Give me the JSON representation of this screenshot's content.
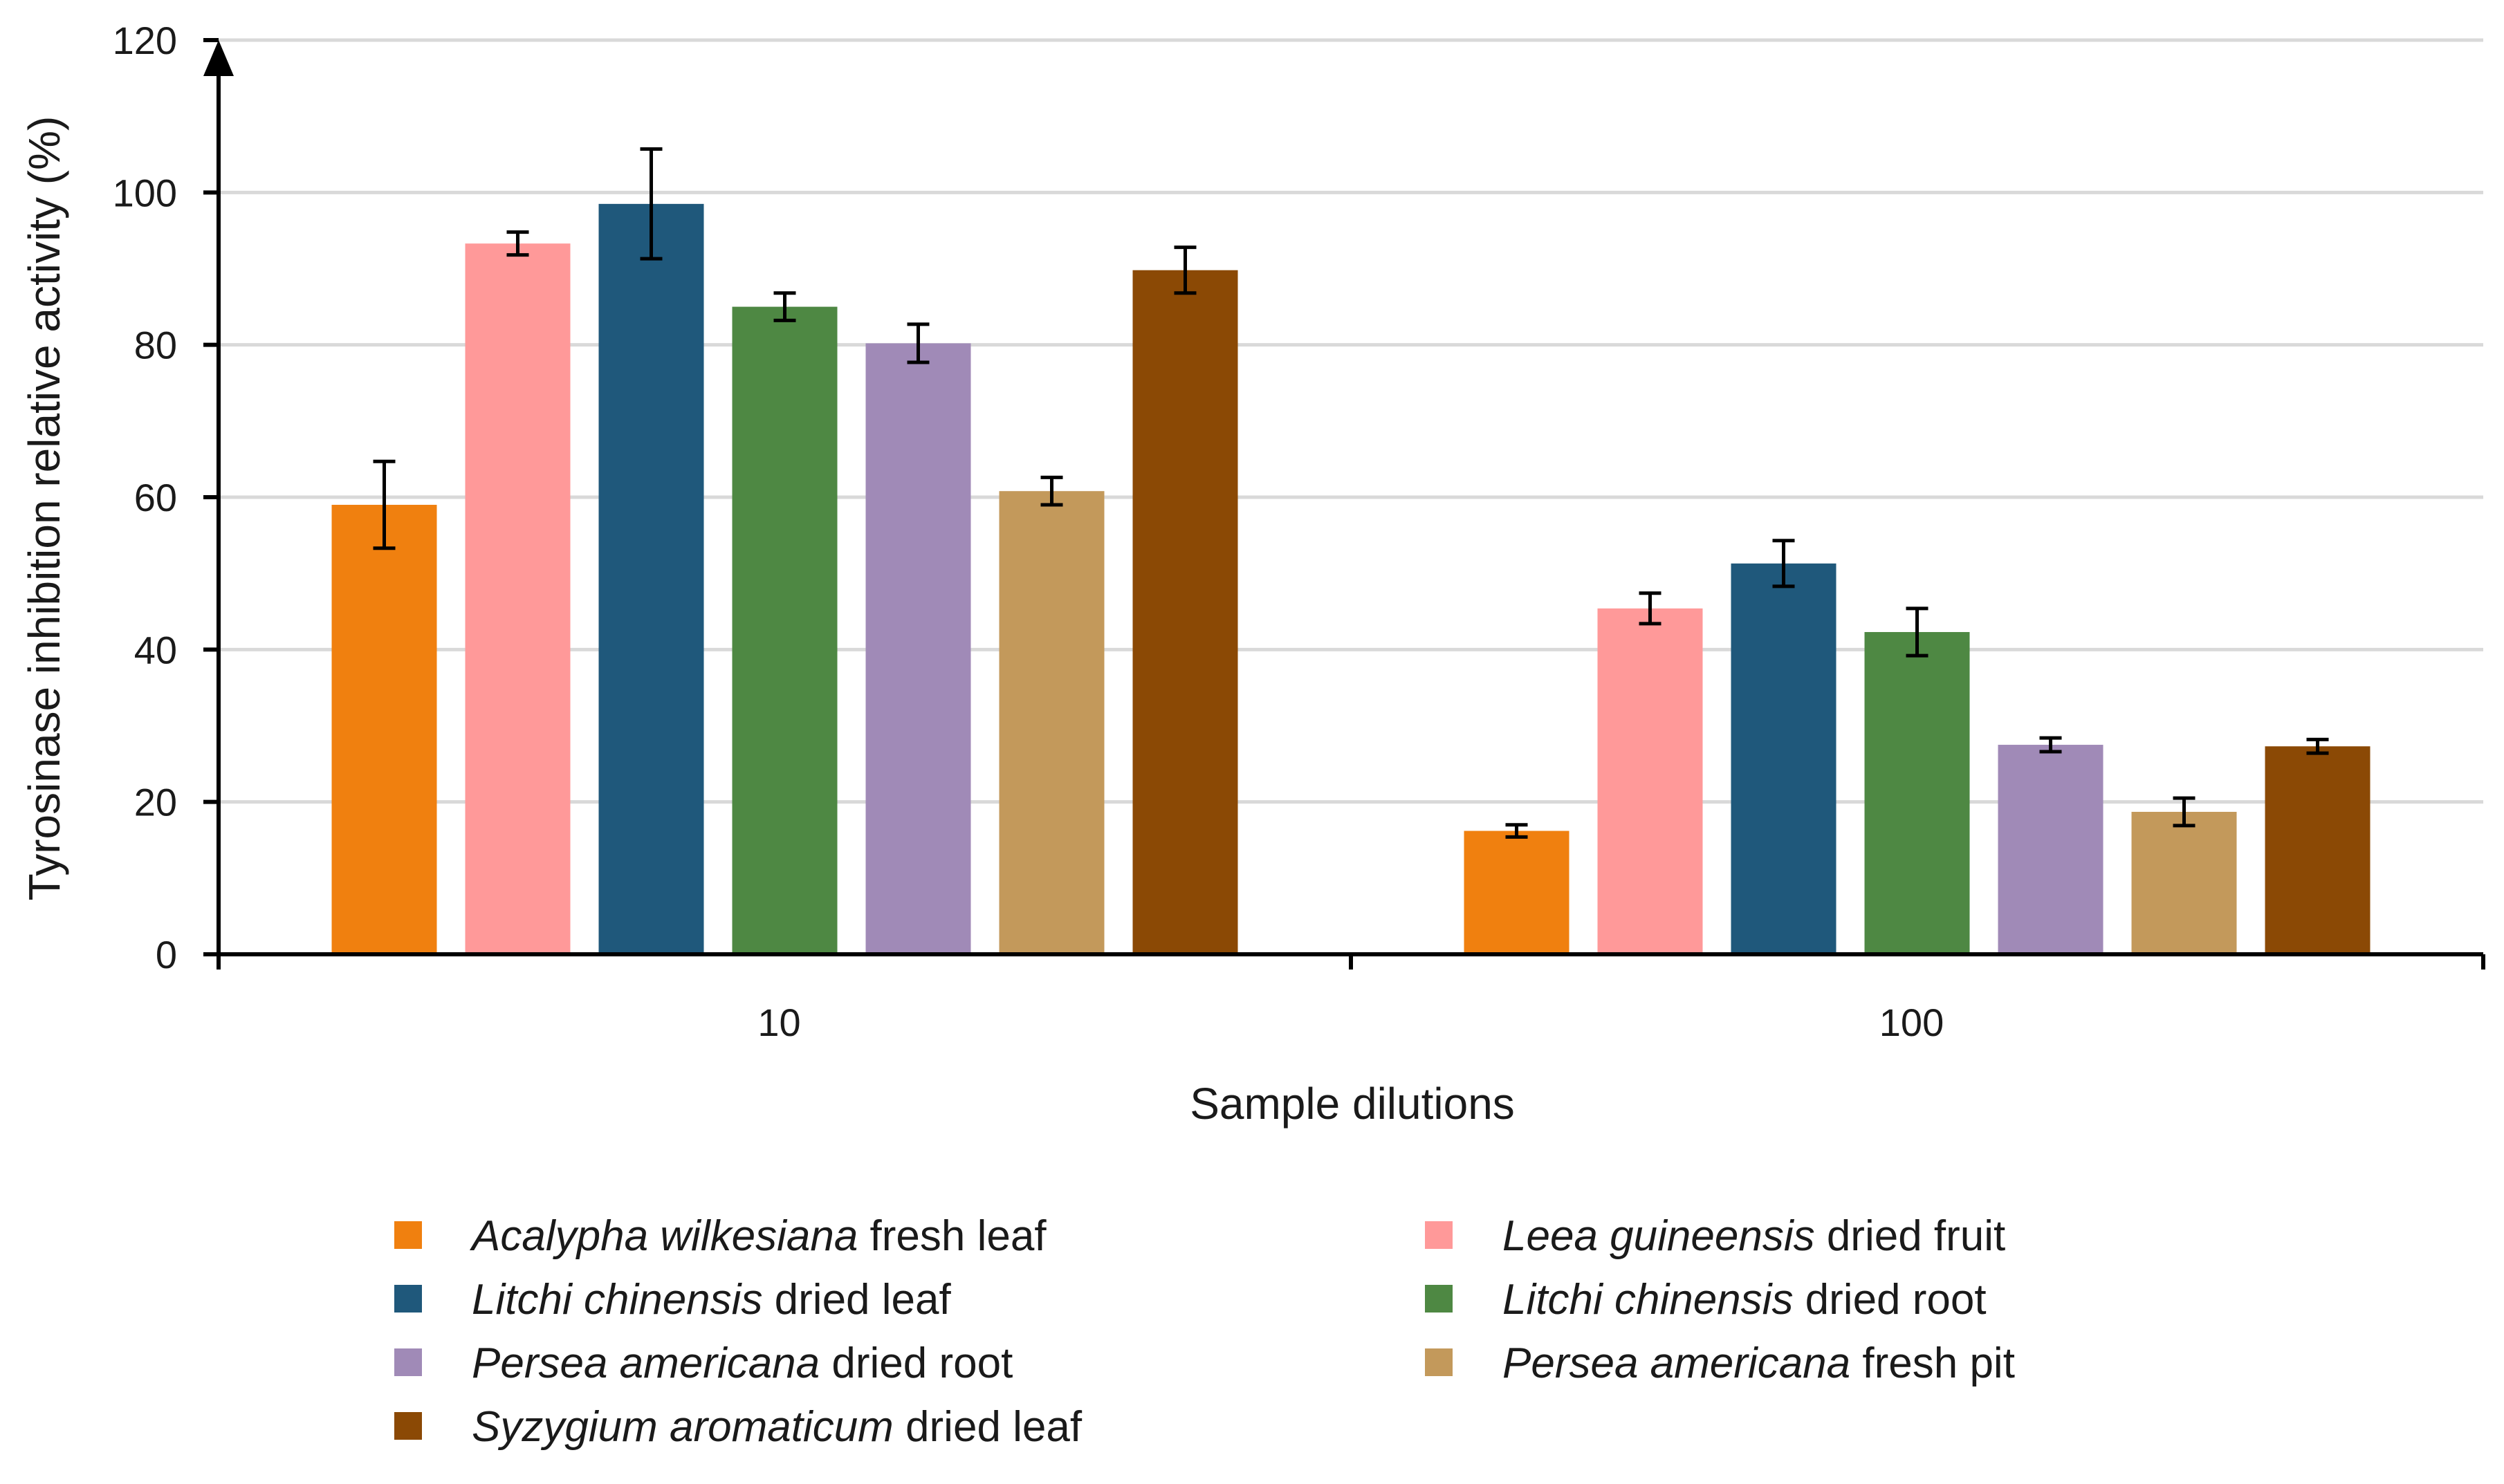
{
  "chart_data": {
    "type": "bar",
    "ylabel": "Tyrosinase inhibition relative activity (%)",
    "xlabel": "Sample dilutions",
    "categories": [
      "10",
      "100"
    ],
    "ylim": [
      0,
      120
    ],
    "yticks": [
      0,
      20,
      40,
      60,
      80,
      100,
      120
    ],
    "grid": true,
    "legend_position": "bottom",
    "series": [
      {
        "name": "Acalypha wilkesiana fresh leaf",
        "name_italic": "Acalypha wilkesiana",
        "name_plain": " fresh leaf",
        "color": "#F0800F",
        "values": [
          59,
          16.2
        ],
        "errors": [
          5.7,
          0.8
        ]
      },
      {
        "name": "Leea guineensis dried fruit",
        "name_italic": "Leea guineensis",
        "name_plain": " dried fruit",
        "color": "#FF9999",
        "values": [
          93.3,
          45.4
        ],
        "errors": [
          1.5,
          2
        ]
      },
      {
        "name": "Litchi chinensis dried leaf",
        "name_italic": "Litchi chinensis",
        "name_plain": " dried leaf",
        "color": "#1F587B",
        "values": [
          98.5,
          51.3
        ],
        "errors": [
          7.2,
          3
        ]
      },
      {
        "name": "Litchi chinensis dried root",
        "name_italic": "Litchi chinensis",
        "name_plain": " dried root",
        "color": "#4E8843",
        "values": [
          85,
          42.3
        ],
        "errors": [
          1.8,
          3.1
        ]
      },
      {
        "name": "Persea americana dried root",
        "name_italic": "Persea americana",
        "name_plain": " dried root",
        "color": "#A08AB7",
        "values": [
          80.2,
          27.5
        ],
        "errors": [
          2.5,
          0.9
        ]
      },
      {
        "name": "Persea americana fresh pit",
        "name_italic": "Persea americana",
        "name_plain": " fresh pit",
        "color": "#C3995B",
        "values": [
          60.8,
          18.7
        ],
        "errors": [
          1.8,
          1.8
        ]
      },
      {
        "name": "Syzygium aromaticum dried leaf",
        "name_italic": "Syzygium aromaticum",
        "name_plain": " dried leaf",
        "color": "#8B4905",
        "values": [
          89.8,
          27.3
        ],
        "errors": [
          3,
          0.9
        ]
      }
    ]
  }
}
